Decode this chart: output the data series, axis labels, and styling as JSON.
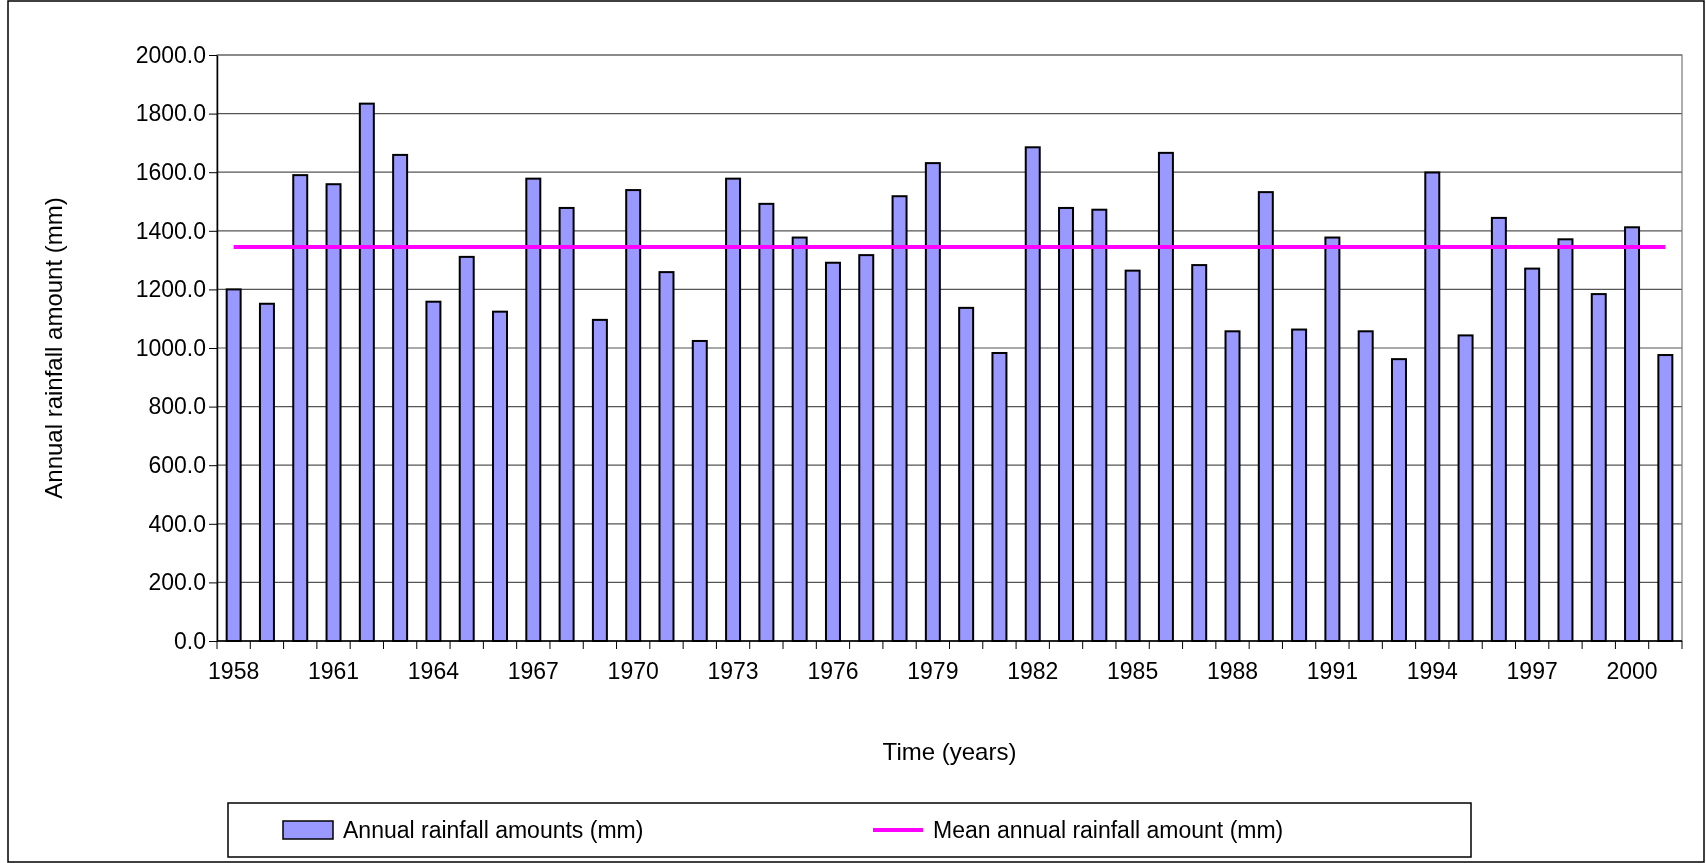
{
  "chart_data": {
    "type": "bar",
    "xlabel": "Time (years)",
    "ylabel": "Annual rainfall amount (mm)",
    "categories": [
      "1958",
      null,
      null,
      "1961",
      null,
      null,
      "1964",
      null,
      null,
      "1967",
      null,
      null,
      "1970",
      null,
      null,
      "1973",
      null,
      null,
      "1976",
      null,
      null,
      "1979",
      null,
      null,
      "1982",
      null,
      null,
      "1985",
      null,
      null,
      "1988",
      null,
      null,
      "1991",
      null,
      null,
      "1994",
      null,
      null,
      "1997",
      null,
      null,
      "2000",
      null
    ],
    "series": [
      {
        "name": "Annual rainfall amounts (mm)",
        "color": "#9999ff",
        "values": [
          1200,
          1151,
          1590,
          1559,
          1834,
          1659,
          1158,
          1311,
          1124,
          1578,
          1478,
          1096,
          1539,
          1259,
          1024,
          1578,
          1492,
          1377,
          1291,
          1317,
          1518,
          1631,
          1137,
          983,
          1685,
          1478,
          1472,
          1264,
          1666,
          1283,
          1057,
          1532,
          1063,
          1377,
          1057,
          962,
          1599,
          1043,
          1444,
          1271,
          1371,
          1184,
          1412,
          976
        ]
      },
      {
        "name": "Mean annual rainfall amount (mm)",
        "type": "line",
        "color": "#ff00ff",
        "values": [
          1345,
          1345,
          1345,
          1345,
          1345,
          1345,
          1345,
          1345,
          1345,
          1345,
          1345,
          1345,
          1345,
          1345,
          1345,
          1345,
          1345,
          1345,
          1345,
          1345,
          1345,
          1345,
          1345,
          1345,
          1345,
          1345,
          1345,
          1345,
          1345,
          1345,
          1345,
          1345,
          1345,
          1345,
          1345,
          1345,
          1345,
          1345,
          1345,
          1345,
          1345,
          1345,
          1345,
          1345
        ]
      }
    ],
    "ylim": [
      0,
      2000
    ],
    "yticks": [
      {
        "value": 0,
        "label": "0.0"
      },
      {
        "value": 200,
        "label": "200.0"
      },
      {
        "value": 400,
        "label": "400.0"
      },
      {
        "value": 600,
        "label": "600.0"
      },
      {
        "value": 800,
        "label": "800.0"
      },
      {
        "value": 1000,
        "label": "1000.0"
      },
      {
        "value": 1200,
        "label": "1200.0"
      },
      {
        "value": 1400,
        "label": "1400.0"
      },
      {
        "value": 1600,
        "label": "1600.0"
      },
      {
        "value": 1800,
        "label": "1800.0"
      },
      {
        "value": 2000,
        "label": "2000.0"
      }
    ],
    "grid": "y",
    "legend": "bottom",
    "marker": "none",
    "line_style": "solid"
  }
}
